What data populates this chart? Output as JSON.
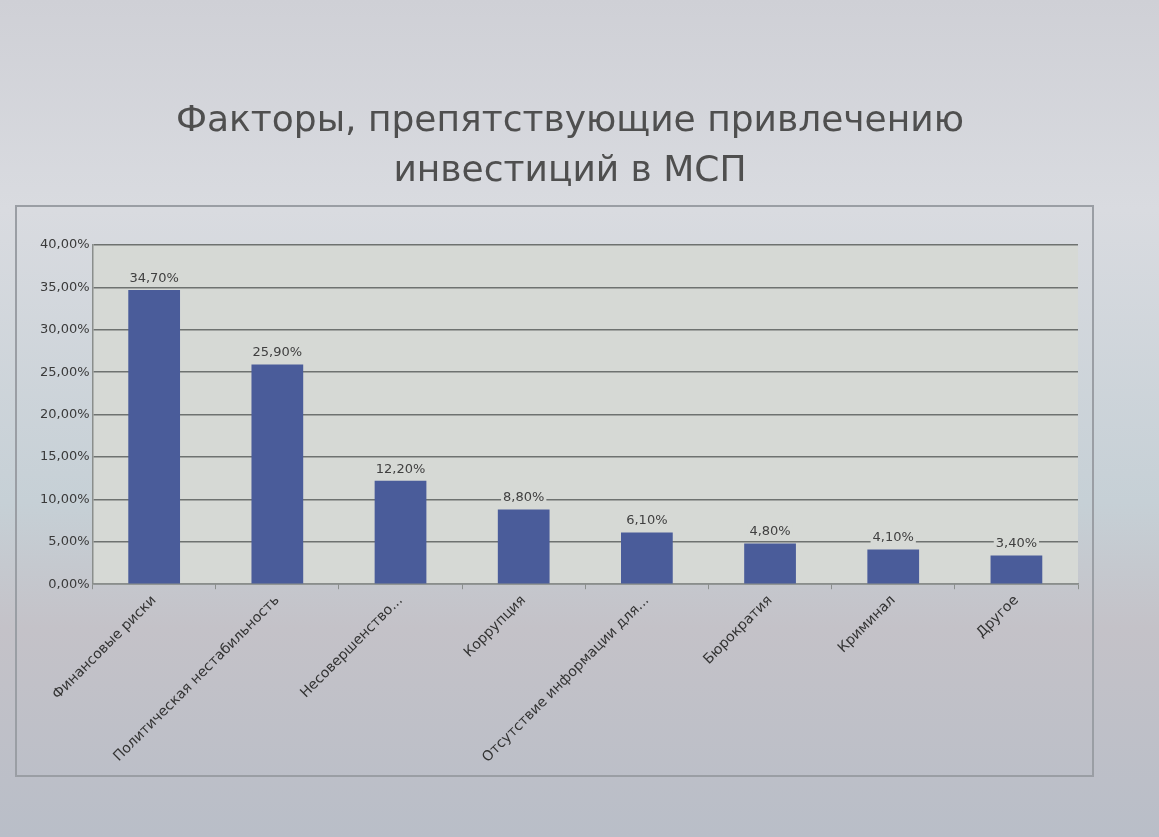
{
  "chart_data": {
    "type": "bar",
    "title": "Факторы, препятствующие привлечению инвестиций в МСП",
    "categories": [
      "Финансовые риски",
      "Политическая нестабильность",
      "Несовершенство...",
      "Коррупция",
      "Отсутствие информации для...",
      "Бюрократия",
      "Криминал",
      "Другое"
    ],
    "values": [
      34.7,
      25.9,
      12.2,
      8.8,
      6.1,
      4.8,
      4.1,
      3.4
    ],
    "value_labels": [
      "34,70%",
      "25,90%",
      "12,20%",
      "8,80%",
      "6,10%",
      "4,80%",
      "4,10%",
      "3,40%"
    ],
    "color": "#4a5c9a",
    "ylim": [
      0,
      40
    ],
    "yticks": [
      {
        "value": 0,
        "label": "0,00%"
      },
      {
        "value": 5,
        "label": "5,00%"
      },
      {
        "value": 10,
        "label": "10,00%"
      },
      {
        "value": 15,
        "label": "15,00%"
      },
      {
        "value": 20,
        "label": "20,00%"
      },
      {
        "value": 25,
        "label": "25,00%"
      },
      {
        "value": 30,
        "label": "30,00%"
      },
      {
        "value": 35,
        "label": "35,00%"
      },
      {
        "value": 40,
        "label": "40,00%"
      }
    ],
    "grid": "y"
  }
}
